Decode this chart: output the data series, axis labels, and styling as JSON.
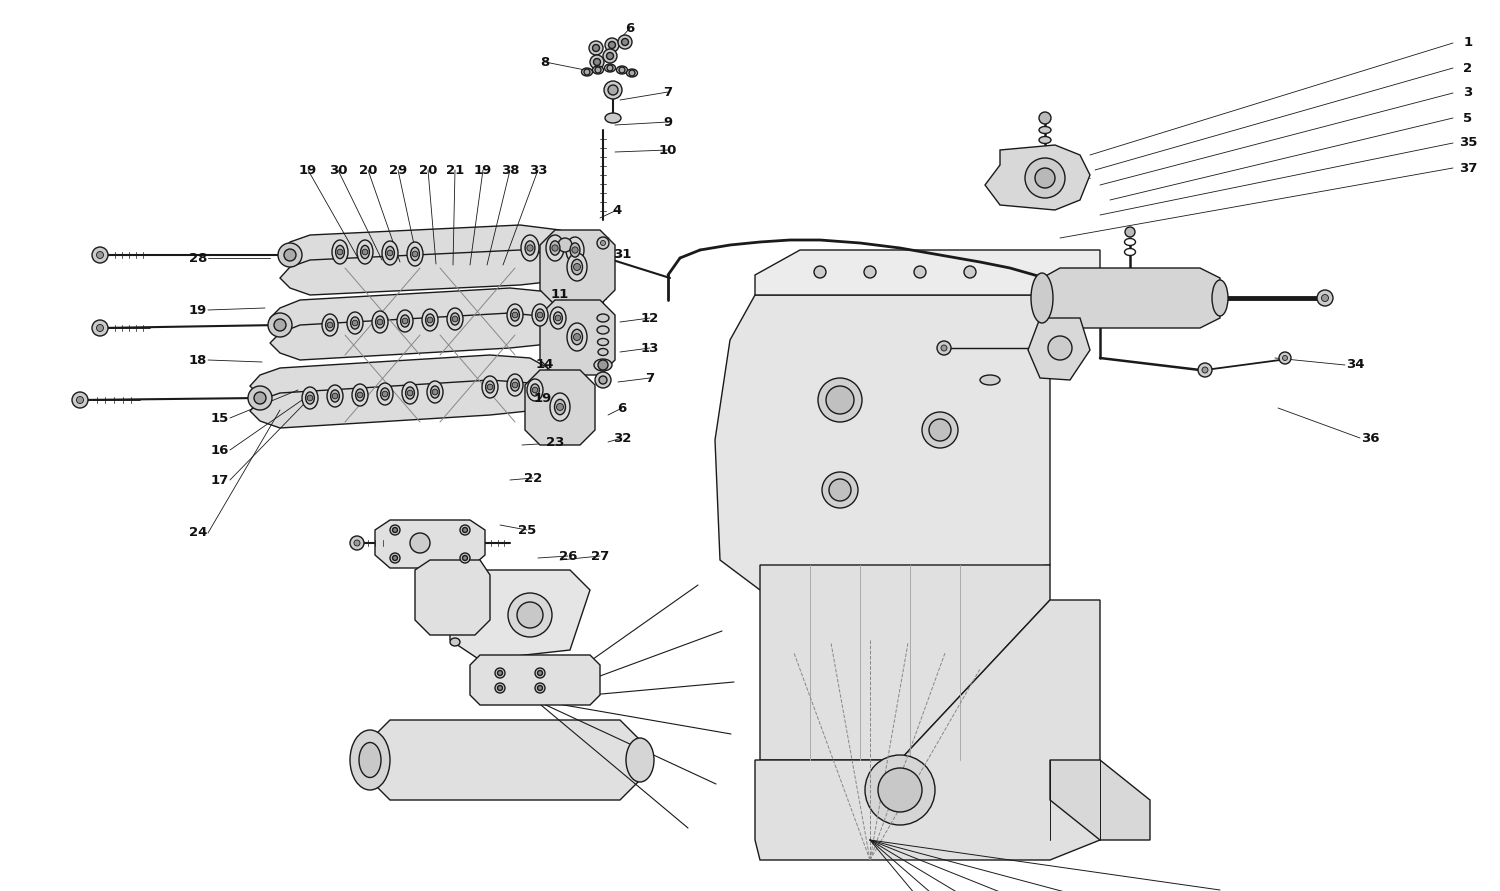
{
  "bg_color": "#ffffff",
  "line_color": "#1a1a1a",
  "label_color": "#111111",
  "lw_main": 1.0,
  "lw_thin": 0.7,
  "lw_thick": 1.8,
  "figsize": [
    15.0,
    8.91
  ],
  "dpi": 100,
  "right_labels": [
    [
      "1",
      1468,
      43
    ],
    [
      "2",
      1468,
      68
    ],
    [
      "3",
      1468,
      93
    ],
    [
      "5",
      1468,
      118
    ],
    [
      "35",
      1468,
      143
    ],
    [
      "37",
      1468,
      168
    ]
  ],
  "top_labels": [
    [
      "6",
      630,
      28
    ],
    [
      "8",
      545,
      62
    ],
    [
      "7",
      668,
      92
    ],
    [
      "9",
      668,
      122
    ],
    [
      "10",
      668,
      150
    ],
    [
      "4",
      617,
      210
    ],
    [
      "31",
      622,
      255
    ],
    [
      "11",
      560,
      295
    ],
    [
      "12",
      650,
      318
    ],
    [
      "13",
      650,
      348
    ],
    [
      "7",
      650,
      378
    ],
    [
      "6",
      622,
      408
    ],
    [
      "32",
      622,
      438
    ],
    [
      "14",
      545,
      365
    ]
  ],
  "top_arm_labels": [
    [
      "19",
      308,
      170
    ],
    [
      "30",
      338,
      170
    ],
    [
      "20",
      368,
      170
    ],
    [
      "29",
      398,
      170
    ],
    [
      "20",
      428,
      170
    ],
    [
      "21",
      455,
      170
    ],
    [
      "19",
      483,
      170
    ],
    [
      "38",
      510,
      170
    ],
    [
      "33",
      538,
      170
    ]
  ],
  "left_labels": [
    [
      "28",
      198,
      258
    ],
    [
      "19",
      198,
      310
    ],
    [
      "18",
      198,
      360
    ],
    [
      "15",
      220,
      418
    ],
    [
      "16",
      220,
      450
    ],
    [
      "17",
      220,
      480
    ],
    [
      "24",
      198,
      533
    ]
  ],
  "bottom_labels": [
    [
      "19",
      543,
      398
    ],
    [
      "23",
      555,
      443
    ],
    [
      "22",
      533,
      478
    ],
    [
      "25",
      527,
      530
    ],
    [
      "26",
      568,
      556
    ],
    [
      "27",
      600,
      556
    ]
  ],
  "right_side_labels": [
    [
      "34",
      1355,
      365
    ],
    [
      "36",
      1370,
      438
    ]
  ]
}
